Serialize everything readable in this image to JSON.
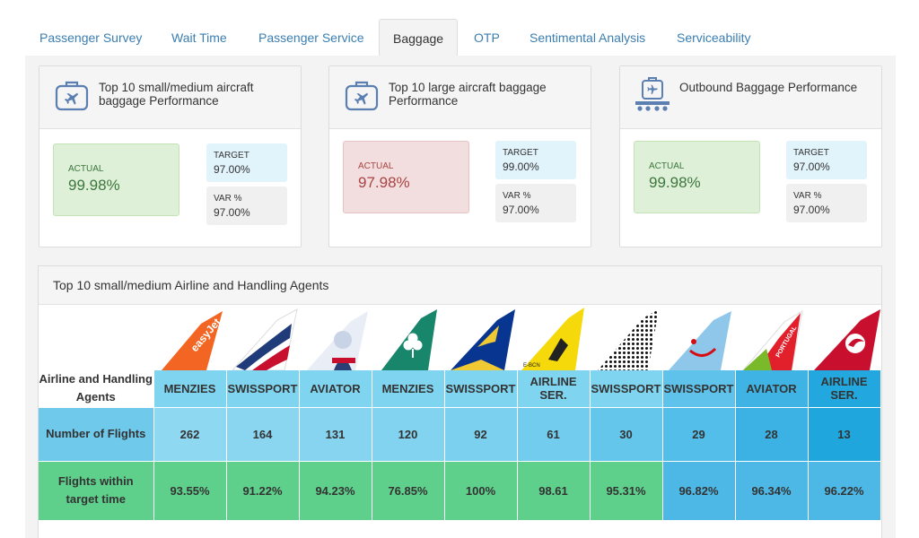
{
  "tabs": [
    {
      "label": "Passenger Survey"
    },
    {
      "label": "Wait Time"
    },
    {
      "label": "Passenger Service"
    },
    {
      "label": "Baggage"
    },
    {
      "label": "OTP"
    },
    {
      "label": "Sentimental Analysis"
    },
    {
      "label": "Serviceability"
    }
  ],
  "active_tab": "Baggage",
  "cards": [
    {
      "title": "Top 10 small/medium aircraft baggage Performance",
      "icon": "airplane-suitcase-icon",
      "actual_label": "ACTUAL",
      "actual": "99.98%",
      "status": "good",
      "target_label": "TARGET",
      "target": "97.00%",
      "var_label": "VAR %",
      "var": "97.00%"
    },
    {
      "title": "Top 10 large aircraft baggage Performance",
      "icon": "airplane-suitcase-icon",
      "actual_label": "ACTUAL",
      "actual": "97.98%",
      "status": "bad",
      "target_label": "TARGET",
      "target": "99.00%",
      "var_label": "VAR %",
      "var": "97.00%"
    },
    {
      "title": "Outbound Baggage Performance",
      "icon": "baggage-conveyor-icon",
      "actual_label": "ACTUAL",
      "actual": "99.98%",
      "status": "good",
      "target_label": "TARGET",
      "target": "97.00%",
      "var_label": "VAR %",
      "var": "97.00%"
    }
  ],
  "status_colors": {
    "good": "#dff0d8",
    "bad": "#f2dede",
    "target": "#e1f3fb"
  },
  "table": {
    "title": "Top 10 small/medium Airline and Handling Agents",
    "row_labels": {
      "agents": "Airline and Handling Agents",
      "flights": "Number of Flights",
      "within": "Flights within target time"
    },
    "columns": [
      {
        "tail": "easyjet",
        "agent": "MENZIES",
        "flights": "262",
        "within": "93.55%"
      },
      {
        "tail": "british-airways",
        "agent": "SWISSPORT",
        "flights": "164",
        "within": "91.22%"
      },
      {
        "tail": "norwegian",
        "agent": "AVIATOR",
        "flights": "131",
        "within": "94.23%"
      },
      {
        "tail": "aer-lingus",
        "agent": "MENZIES",
        "flights": "120",
        "within": "76.85%"
      },
      {
        "tail": "ryanair",
        "agent": "SWISSPORT",
        "flights": "92",
        "within": "100%"
      },
      {
        "tail": "yellow-tail",
        "agent": "AIRLINE SER.",
        "flights": "61",
        "within": "98.61"
      },
      {
        "tail": "dotted-tail",
        "agent": "SWISSPORT",
        "flights": "30",
        "within": "95.31%"
      },
      {
        "tail": "tui",
        "agent": "SWISSPORT",
        "flights": "29",
        "within": "96.82%"
      },
      {
        "tail": "tap-portugal",
        "agent": "AVIATOR",
        "flights": "28",
        "within": "96.34%"
      },
      {
        "tail": "turkish-airlines",
        "agent": "AIRLINE SER.",
        "flights": "13",
        "within": "96.22%"
      }
    ]
  }
}
